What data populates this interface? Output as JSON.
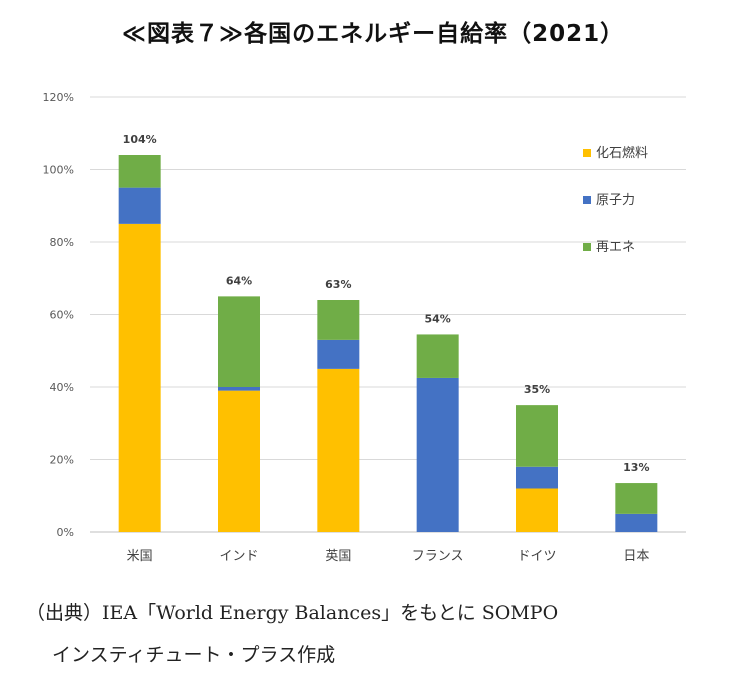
{
  "title": "≪図表７≫各国のエネルギー自給率（2021）",
  "source_line1": "（出典）IEA「World Energy Balances」をもとに SOMPO",
  "source_line2": "インスティチュート・プラス作成",
  "chart_data": {
    "type": "bar",
    "stacked": true,
    "categories": [
      "米国",
      "インド",
      "英国",
      "フランス",
      "ドイツ",
      "日本"
    ],
    "series": [
      {
        "name": "化石燃料",
        "color": "#FFC000",
        "values": [
          85,
          39,
          45,
          0,
          12,
          0
        ]
      },
      {
        "name": "原子力",
        "color": "#4472C4",
        "values": [
          10,
          1,
          8,
          42.5,
          6,
          5
        ]
      },
      {
        "name": "再エネ",
        "color": "#70AD47",
        "values": [
          9,
          25,
          11,
          12,
          17,
          8.5
        ]
      }
    ],
    "totals_labels": [
      "104%",
      "64%",
      "63%",
      "54%",
      "35%",
      "13%"
    ],
    "ylim": [
      0,
      120
    ],
    "yticks": [
      "0%",
      "20%",
      "40%",
      "60%",
      "80%",
      "100%",
      "120%"
    ],
    "ytick_values": [
      0,
      20,
      40,
      60,
      80,
      100,
      120
    ],
    "grid": true,
    "legend_position": "top-right"
  }
}
